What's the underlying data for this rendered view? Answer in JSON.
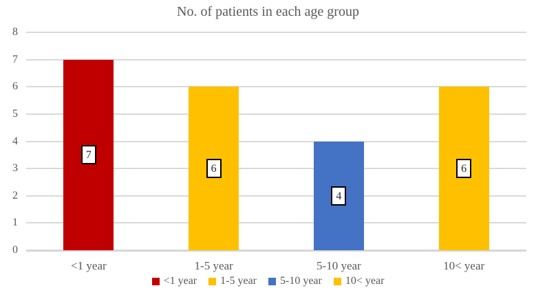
{
  "chart_data": {
    "type": "bar",
    "title": "No. of patients in each age group",
    "categories": [
      "<1 year",
      "1-5 year",
      "5-10 year",
      "10< year"
    ],
    "values": [
      7,
      6,
      4,
      6
    ],
    "bar_colors": [
      "#C00000",
      "#FFC000",
      "#4472C4",
      "#FFC000"
    ],
    "data_labels": [
      "7",
      "6",
      "4",
      "6"
    ],
    "data_label_position": "inside-center",
    "xlabel": "",
    "ylabel": "",
    "ylim": [
      0,
      8
    ],
    "yticks": [
      0,
      1,
      2,
      3,
      4,
      5,
      6,
      7,
      8
    ],
    "grid": "horizontal",
    "legend": {
      "position": "bottom",
      "entries": [
        {
          "label": "<1 year",
          "color": "#C00000"
        },
        {
          "label": "1-5 year",
          "color": "#FFC000"
        },
        {
          "label": "5-10 year",
          "color": "#4472C4"
        },
        {
          "label": "10< year",
          "color": "#FFC000"
        }
      ]
    },
    "colors": {
      "gridline": "#D9D9D9",
      "axis_line": "#D6D6D6",
      "text": "#595959",
      "data_label_text": "#262626",
      "data_label_bg": "#FFFFFF",
      "data_label_border": "#000000",
      "background": "#FFFFFF"
    }
  }
}
